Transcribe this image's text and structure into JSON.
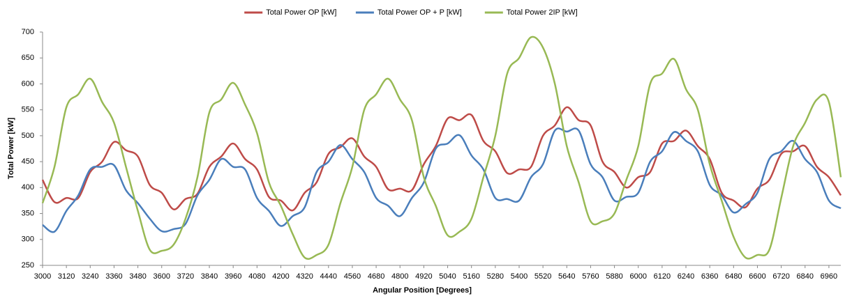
{
  "chart_data": {
    "type": "line",
    "y_label": "Total Power [kW]",
    "x_label": "Angular Position [Degrees]",
    "x": [
      3000,
      3060,
      3120,
      3180,
      3240,
      3300,
      3360,
      3420,
      3480,
      3540,
      3600,
      3660,
      3720,
      3780,
      3840,
      3900,
      3960,
      4020,
      4080,
      4140,
      4200,
      4260,
      4320,
      4380,
      4440,
      4500,
      4560,
      4620,
      4680,
      4740,
      4800,
      4860,
      4920,
      4980,
      5040,
      5100,
      5160,
      5220,
      5280,
      5340,
      5400,
      5460,
      5520,
      5580,
      5640,
      5700,
      5760,
      5820,
      5880,
      5940,
      6000,
      6060,
      6120,
      6180,
      6240,
      6300,
      6360,
      6420,
      6480,
      6540,
      6600,
      6660,
      6720,
      6780,
      6840,
      6900,
      6960,
      7020
    ],
    "series": [
      {
        "name": "Total Power OP [kW]",
        "color": "#be4b48",
        "values": [
          415,
          372,
          380,
          380,
          430,
          450,
          488,
          472,
          460,
          405,
          390,
          358,
          378,
          388,
          440,
          460,
          485,
          455,
          435,
          382,
          375,
          356,
          390,
          410,
          465,
          478,
          495,
          460,
          440,
          397,
          398,
          395,
          445,
          480,
          533,
          530,
          540,
          490,
          470,
          428,
          435,
          440,
          500,
          520,
          555,
          530,
          520,
          450,
          430,
          400,
          420,
          430,
          485,
          490,
          510,
          480,
          455,
          390,
          375,
          362,
          398,
          415,
          465,
          470,
          480,
          440,
          420,
          385
        ]
      },
      {
        "name": "Total Power OP + P [kW]",
        "color": "#4a7ebb",
        "values": [
          328,
          315,
          355,
          385,
          435,
          440,
          443,
          395,
          370,
          340,
          316,
          320,
          330,
          385,
          415,
          455,
          440,
          435,
          380,
          355,
          326,
          345,
          362,
          430,
          450,
          482,
          455,
          430,
          380,
          365,
          345,
          380,
          410,
          475,
          485,
          501,
          462,
          435,
          380,
          378,
          375,
          420,
          445,
          510,
          508,
          510,
          445,
          420,
          375,
          382,
          390,
          450,
          470,
          507,
          490,
          470,
          405,
          385,
          352,
          368,
          390,
          455,
          470,
          490,
          455,
          430,
          375,
          360
        ]
      },
      {
        "name": "Total Power 2IP [kW]",
        "color": "#98b954",
        "values": [
          370,
          440,
          555,
          580,
          610,
          565,
          525,
          440,
          355,
          280,
          278,
          290,
          340,
          420,
          545,
          570,
          602,
          560,
          505,
          410,
          365,
          310,
          265,
          270,
          290,
          370,
          440,
          550,
          580,
          610,
          570,
          530,
          420,
          365,
          308,
          315,
          340,
          420,
          500,
          620,
          650,
          690,
          670,
          600,
          480,
          410,
          335,
          335,
          350,
          415,
          480,
          600,
          620,
          648,
          590,
          550,
          445,
          375,
          305,
          265,
          270,
          280,
          380,
          480,
          525,
          570,
          565,
          420
        ]
      }
    ],
    "xlim": [
      3000,
      7020
    ],
    "xticks": [
      3000,
      3120,
      3240,
      3360,
      3480,
      3600,
      3720,
      3840,
      3960,
      4080,
      4200,
      4320,
      4440,
      4560,
      4680,
      4800,
      4920,
      5040,
      5160,
      5280,
      5400,
      5520,
      5640,
      5760,
      5880,
      6000,
      6120,
      6240,
      6360,
      6480,
      6600,
      6720,
      6840,
      6960
    ],
    "ylim": [
      250,
      700
    ],
    "yticks": [
      250,
      300,
      350,
      400,
      450,
      500,
      550,
      600,
      650,
      700
    ],
    "grid": false,
    "legend": "top"
  }
}
